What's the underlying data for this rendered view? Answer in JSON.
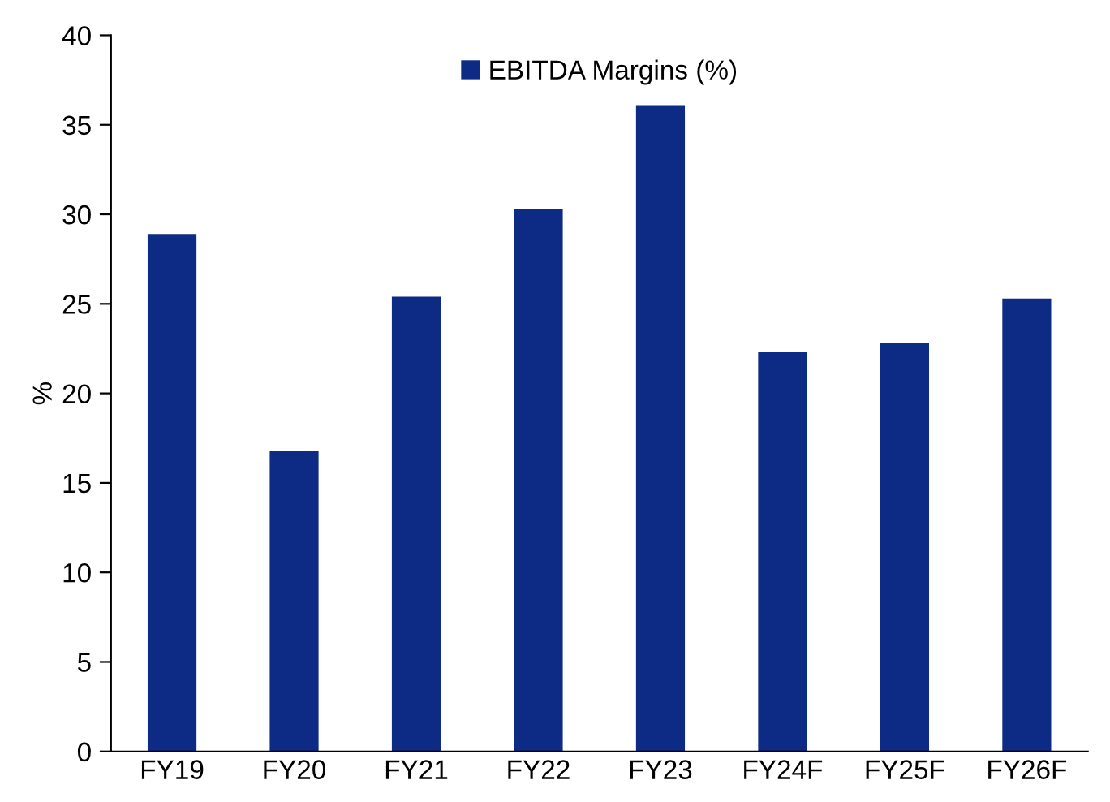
{
  "chart_data": {
    "type": "bar",
    "ylabel": "%",
    "categories": [
      "FY19",
      "FY20",
      "FY21",
      "FY22",
      "FY23",
      "FY24F",
      "FY25F",
      "FY26F"
    ],
    "series": [
      {
        "name": "EBITDA Margins (%)",
        "color": "#0d2a85",
        "values": [
          28.9,
          16.8,
          25.4,
          30.3,
          36.1,
          22.3,
          22.8,
          25.3
        ]
      }
    ],
    "ylim": [
      0,
      40
    ],
    "yticks": [
      0,
      5,
      10,
      15,
      20,
      25,
      30,
      35,
      40
    ],
    "grid": false,
    "legend": "top"
  }
}
